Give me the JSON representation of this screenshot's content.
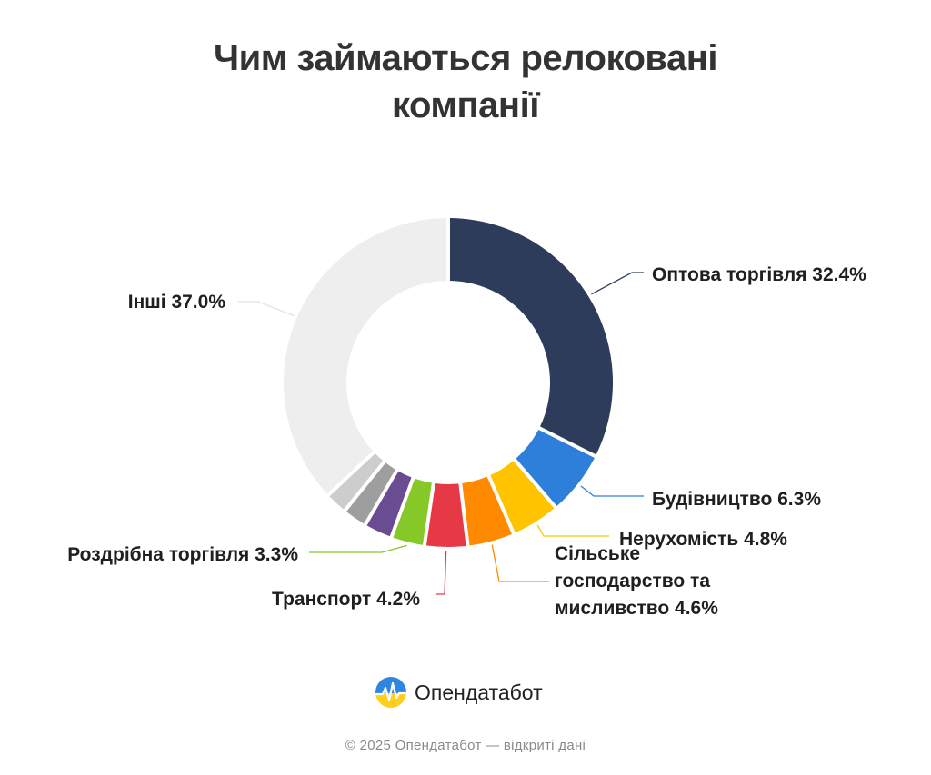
{
  "title": {
    "line1": "Чим займаються релоковані",
    "line2": "компанії"
  },
  "chart_data": {
    "type": "pie",
    "variant": "donut",
    "title": "Чим займаються релоковані компанії",
    "series": [
      {
        "name": "Оптова торгівля",
        "value": 32.4,
        "label": "Оптова торгівля 32.4%",
        "color": "#2e3c5c"
      },
      {
        "name": "Будівництво",
        "value": 6.3,
        "label": "Будівництво 6.3%",
        "color": "#2e7fd9"
      },
      {
        "name": "Нерухомість",
        "value": 4.8,
        "label": "Нерухомість 4.8%",
        "color": "#ffc300"
      },
      {
        "name": "Сільське господарство та мисливство",
        "value": 4.6,
        "label": "Сільське господарство та мисливство 4.6%",
        "label_lines": [
          "Сільське",
          "господарство та",
          "мисливство 4.6%"
        ],
        "color": "#ff8a00"
      },
      {
        "name": "Транспорт",
        "value": 4.2,
        "label": "Транспорт 4.2%",
        "color": "#e63946"
      },
      {
        "name": "Роздрібна торгівля",
        "value": 3.3,
        "label": "Роздрібна торгівля 3.3%",
        "color": "#86c828"
      },
      {
        "name": "",
        "value": 2.8,
        "label": "",
        "color": "#6a4c93"
      },
      {
        "name": "",
        "value": 2.4,
        "label": "",
        "color": "#9e9e9e"
      },
      {
        "name": "",
        "value": 2.2,
        "label": "",
        "color": "#cdcdcd"
      },
      {
        "name": "Інші",
        "value": 37.0,
        "label": "Інші 37.0%",
        "color": "#eeeeee"
      }
    ],
    "legend": "none",
    "data_labels": "outside"
  },
  "brand": {
    "name": "Опендатабот",
    "logo_icon": "opendatabot-logo-icon"
  },
  "footer": {
    "text": "© 2025 Опендатабот — відкриті дані"
  }
}
